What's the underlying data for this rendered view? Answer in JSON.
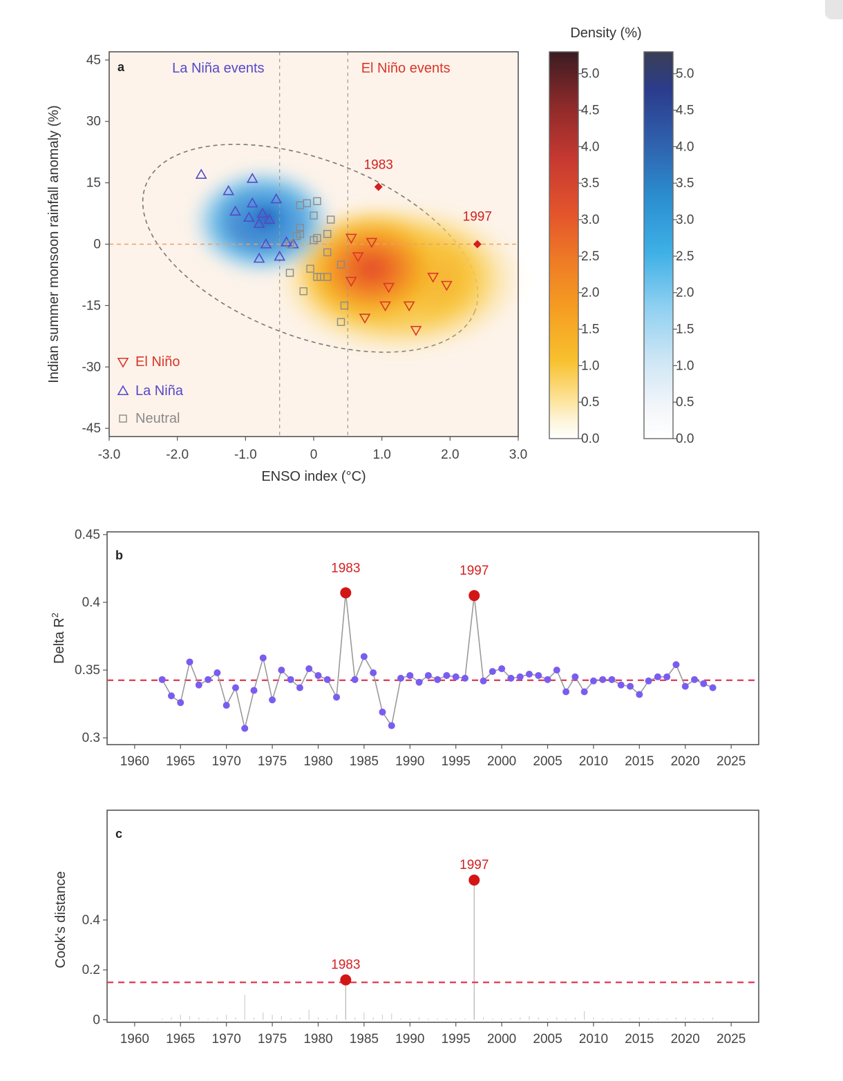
{
  "chart_data": [
    {
      "panel": "a",
      "type": "scatter",
      "xlabel": "ENSO index (°C)",
      "ylabel": "Indian summer monsoon rainfall anomaly (%)",
      "xlim": [
        -3,
        3
      ],
      "ylim": [
        -47,
        47
      ],
      "x_ticks": [
        "-3.0",
        "-2.0",
        "-1.0",
        "0",
        "1.0",
        "2.0",
        "3.0"
      ],
      "y_ticks": [
        "45",
        "30",
        "15",
        "0",
        "-15",
        "-30",
        "-45"
      ],
      "region_labels": {
        "la_nina": "La Niña events",
        "el_nino": "El Niño events"
      },
      "reference_lines": {
        "x": [
          -0.5,
          0.5
        ],
        "y": [
          0
        ]
      },
      "colors": {
        "el_nino": "#d9362a",
        "la_nina": "#5548c8",
        "neutral": "#8a8a8a",
        "background": "#fdf3ea"
      },
      "legend": {
        "position": "bottom-left",
        "entries": [
          "El Niño",
          "La Niña",
          "Neutral"
        ]
      },
      "colorbar_title": "Density (%)",
      "colorbar_ticks": [
        "5.0",
        "4.5",
        "4.0",
        "3.5",
        "3.0",
        "2.5",
        "2.0",
        "1.5",
        "1.0",
        "0.5",
        "0.0"
      ],
      "series": [
        {
          "name": "El Niño",
          "marker": "triangle-down",
          "points": [
            [
              0.55,
              1.5
            ],
            [
              0.85,
              0.5
            ],
            [
              0.65,
              -3
            ],
            [
              0.55,
              -9
            ],
            [
              0.75,
              -18
            ],
            [
              1.05,
              -15
            ],
            [
              1.1,
              -10.5
            ],
            [
              1.4,
              -15
            ],
            [
              1.5,
              -21
            ],
            [
              1.75,
              -8
            ],
            [
              1.95,
              -10
            ]
          ]
        },
        {
          "name": "La Niña",
          "marker": "triangle-up",
          "points": [
            [
              -1.65,
              17
            ],
            [
              -1.25,
              13
            ],
            [
              -1.15,
              8
            ],
            [
              -0.9,
              16
            ],
            [
              -0.9,
              10
            ],
            [
              -0.95,
              6.5
            ],
            [
              -0.8,
              5
            ],
            [
              -0.75,
              7.5
            ],
            [
              -0.65,
              6
            ],
            [
              -0.7,
              0
            ],
            [
              -0.8,
              -3.5
            ],
            [
              -0.5,
              -3
            ],
            [
              -0.4,
              0.5
            ],
            [
              -0.3,
              0
            ],
            [
              -0.55,
              11
            ]
          ]
        },
        {
          "name": "Neutral",
          "marker": "square",
          "points": [
            [
              -0.35,
              0
            ],
            [
              -0.25,
              2
            ],
            [
              -0.35,
              -7
            ],
            [
              -0.15,
              -11.5
            ],
            [
              -0.2,
              2.5
            ],
            [
              -0.2,
              4
            ],
            [
              -0.2,
              9.5
            ],
            [
              -0.1,
              10
            ],
            [
              0.05,
              10.5
            ],
            [
              0,
              7
            ],
            [
              0,
              1
            ],
            [
              0.05,
              1.5
            ],
            [
              0.2,
              2.5
            ],
            [
              0.25,
              6
            ],
            [
              0.2,
              -2
            ],
            [
              -0.05,
              -6
            ],
            [
              0.05,
              -8
            ],
            [
              0.1,
              -8
            ],
            [
              0.2,
              -8
            ],
            [
              0.4,
              -5
            ],
            [
              0.45,
              -15
            ],
            [
              0.4,
              -19
            ]
          ]
        },
        {
          "name": "1983",
          "marker": "diamond",
          "points": [
            [
              0.95,
              14
            ]
          ]
        },
        {
          "name": "1997",
          "marker": "diamond",
          "points": [
            [
              2.4,
              0
            ]
          ]
        }
      ],
      "annotations": [
        "1983",
        "1997"
      ]
    },
    {
      "panel": "b",
      "type": "line",
      "ylabel": "Delta R",
      "ylabel_sup": "2",
      "xlim": [
        1957,
        2028
      ],
      "ylim": [
        0.295,
        0.452
      ],
      "x_ticks": [
        "1960",
        "1965",
        "1970",
        "1975",
        "1980",
        "1985",
        "1990",
        "1995",
        "2000",
        "2005",
        "2010",
        "2015",
        "2020",
        "2025"
      ],
      "y_ticks": [
        "0.45",
        "0.4",
        "0.35",
        "0.3"
      ],
      "reference_line_y": 0.3425,
      "highlight": [
        {
          "label": "1983",
          "x": 1983,
          "y": 0.407
        },
        {
          "label": "1997",
          "x": 1997,
          "y": 0.405
        }
      ],
      "x": [
        1963,
        1964,
        1965,
        1966,
        1967,
        1968,
        1969,
        1970,
        1971,
        1972,
        1973,
        1974,
        1975,
        1976,
        1977,
        1978,
        1979,
        1980,
        1981,
        1982,
        1983,
        1984,
        1985,
        1986,
        1987,
        1988,
        1989,
        1990,
        1991,
        1992,
        1993,
        1994,
        1995,
        1996,
        1997,
        1998,
        1999,
        2000,
        2001,
        2002,
        2003,
        2004,
        2005,
        2006,
        2007,
        2008,
        2009,
        2010,
        2011,
        2012,
        2013,
        2014,
        2015,
        2016,
        2017,
        2018,
        2019,
        2020,
        2021,
        2022,
        2023
      ],
      "y": [
        0.343,
        0.331,
        0.326,
        0.356,
        0.339,
        0.343,
        0.348,
        0.324,
        0.337,
        0.307,
        0.335,
        0.359,
        0.328,
        0.35,
        0.343,
        0.337,
        0.351,
        0.346,
        0.343,
        0.33,
        0.407,
        0.343,
        0.36,
        0.348,
        0.319,
        0.309,
        0.344,
        0.346,
        0.341,
        0.346,
        0.343,
        0.346,
        0.345,
        0.344,
        0.405,
        0.342,
        0.349,
        0.351,
        0.344,
        0.345,
        0.347,
        0.346,
        0.343,
        0.35,
        0.334,
        0.345,
        0.334,
        0.342,
        0.343,
        0.343,
        0.339,
        0.338,
        0.332,
        0.342,
        0.345,
        0.345,
        0.354,
        0.338,
        0.343,
        0.34,
        0.337
      ]
    },
    {
      "panel": "c",
      "type": "bar",
      "ylabel": "Cook's distance",
      "xlim": [
        1957,
        2028
      ],
      "ylim": [
        -0.01,
        0.84
      ],
      "x_ticks": [
        "1960",
        "1965",
        "1970",
        "1975",
        "1980",
        "1985",
        "1990",
        "1995",
        "2000",
        "2005",
        "2010",
        "2015",
        "2020",
        "2025"
      ],
      "y_ticks": [
        "0.4",
        "0.2",
        "0"
      ],
      "reference_line_y": 0.15,
      "highlight": [
        {
          "label": "1983",
          "x": 1983,
          "y": 0.16
        },
        {
          "label": "1997",
          "x": 1997,
          "y": 0.56
        }
      ],
      "x": [
        1963,
        1964,
        1965,
        1966,
        1967,
        1968,
        1969,
        1970,
        1971,
        1972,
        1973,
        1974,
        1975,
        1976,
        1977,
        1978,
        1979,
        1980,
        1981,
        1982,
        1983,
        1984,
        1985,
        1986,
        1987,
        1988,
        1989,
        1990,
        1991,
        1992,
        1993,
        1994,
        1995,
        1996,
        1997,
        1998,
        1999,
        2000,
        2001,
        2002,
        2003,
        2004,
        2005,
        2006,
        2007,
        2008,
        2009,
        2010,
        2011,
        2012,
        2013,
        2014,
        2015,
        2016,
        2017,
        2018,
        2019,
        2020,
        2021,
        2022,
        2023
      ],
      "y": [
        0.005,
        0.01,
        0.02,
        0.015,
        0.01,
        0.005,
        0.01,
        0.02,
        0.01,
        0.1,
        0.01,
        0.03,
        0.02,
        0.015,
        0.005,
        0.01,
        0.04,
        0.01,
        0.005,
        0.02,
        0.16,
        0.01,
        0.03,
        0.01,
        0.02,
        0.025,
        0.005,
        0.005,
        0.01,
        0.005,
        0.005,
        0.005,
        0.005,
        0.005,
        0.56,
        0.01,
        0.005,
        0.005,
        0.005,
        0.01,
        0.015,
        0.01,
        0.005,
        0.01,
        0.005,
        0.01,
        0.035,
        0.01,
        0.005,
        0.005,
        0.005,
        0.005,
        0.01,
        0.005,
        0.005,
        0.005,
        0.01,
        0.01,
        0.005,
        0.005,
        0.01
      ]
    }
  ]
}
